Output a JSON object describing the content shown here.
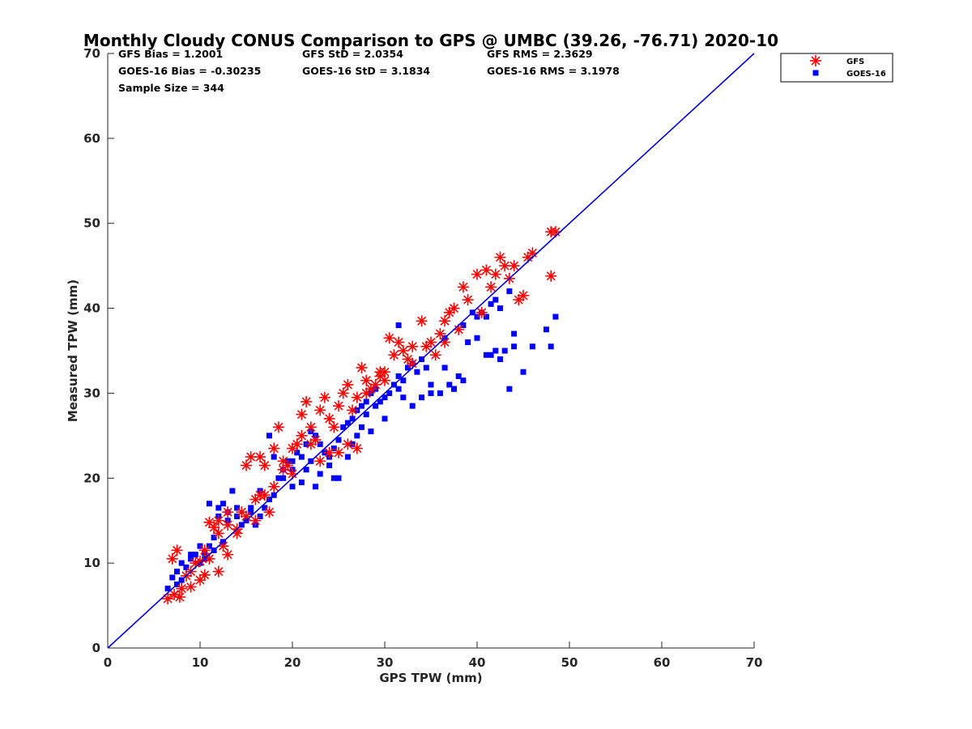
{
  "chart_data": {
    "type": "scatter",
    "title": "Monthly Cloudy CONUS Comparison to GPS @ UMBC (39.26, -76.71) 2020-10",
    "xlabel": "GPS TPW (mm)",
    "ylabel": "Measured TPW (mm)",
    "xlim": [
      0,
      70
    ],
    "ylim": [
      0,
      70
    ],
    "xticks": [
      "0",
      "10",
      "20",
      "30",
      "40",
      "50",
      "60",
      "70"
    ],
    "yticks": [
      "0",
      "10",
      "20",
      "30",
      "40",
      "50",
      "60",
      "70"
    ],
    "grid": false,
    "legend_position": "top-right outside",
    "stats": [
      "GFS Bias = 1.2001",
      "GFS StD = 2.0354",
      "GFS RMS = 2.3629",
      "GOES-16 Bias = -0.30235",
      "GOES-16 StD = 3.1834",
      "GOES-16 RMS = 3.1978",
      "Sample Size = 344"
    ],
    "reference_line": {
      "name": "1:1 line",
      "color": "#0000dd",
      "x": [
        0,
        70
      ],
      "y": [
        0,
        70
      ]
    },
    "series": [
      {
        "name": "GFS",
        "marker": "asterisk",
        "color": "#ff0000",
        "points": [
          [
            6.5,
            5.8
          ],
          [
            7.2,
            6.3
          ],
          [
            7.8,
            6.0
          ],
          [
            7,
            10.5
          ],
          [
            7.5,
            11.5
          ],
          [
            8.5,
            8.5
          ],
          [
            9,
            7.2
          ],
          [
            9.5,
            10.0
          ],
          [
            10,
            8.0
          ],
          [
            10.5,
            8.6
          ],
          [
            10,
            10.2
          ],
          [
            11,
            14.8
          ],
          [
            11.5,
            14.2
          ],
          [
            12,
            9.0
          ],
          [
            12,
            15.0
          ],
          [
            12.5,
            12.0
          ],
          [
            13,
            11.0
          ],
          [
            13,
            14.5
          ],
          [
            14,
            14.0
          ],
          [
            14.5,
            16.0
          ],
          [
            15,
            21.5
          ],
          [
            15.5,
            22.5
          ],
          [
            16,
            17.5
          ],
          [
            16.5,
            22.5
          ],
          [
            16,
            15.0
          ],
          [
            17,
            21.5
          ],
          [
            17,
            18.0
          ],
          [
            17.5,
            16.0
          ],
          [
            18,
            23.5
          ],
          [
            18.5,
            26.0
          ],
          [
            19,
            22.0
          ],
          [
            19.5,
            21.5
          ],
          [
            20,
            23.5
          ],
          [
            20.5,
            24.0
          ],
          [
            21,
            27.5
          ],
          [
            21.5,
            29.0
          ],
          [
            22,
            26.0
          ],
          [
            22.5,
            24.5
          ],
          [
            23,
            28.0
          ],
          [
            23.5,
            29.5
          ],
          [
            24,
            27.0
          ],
          [
            24.5,
            26.0
          ],
          [
            25,
            28.5
          ],
          [
            25.5,
            30.0
          ],
          [
            26,
            31.0
          ],
          [
            26.5,
            28.0
          ],
          [
            27,
            29.5
          ],
          [
            27.5,
            33.0
          ],
          [
            28,
            31.5
          ],
          [
            28.5,
            30.5
          ],
          [
            29,
            31.0
          ],
          [
            29.5,
            32.0
          ],
          [
            30,
            32.5
          ],
          [
            30.5,
            36.5
          ],
          [
            31,
            34.5
          ],
          [
            31.5,
            36.0
          ],
          [
            32,
            35.0
          ],
          [
            32.5,
            34.0
          ],
          [
            33,
            35.5
          ],
          [
            34,
            38.5
          ],
          [
            34.5,
            35.5
          ],
          [
            35,
            36.0
          ],
          [
            35.5,
            34.5
          ],
          [
            36,
            37.0
          ],
          [
            36.5,
            38.5
          ],
          [
            37,
            39.5
          ],
          [
            37.5,
            40.0
          ],
          [
            38,
            37.5
          ],
          [
            38.5,
            42.5
          ],
          [
            39,
            41.0
          ],
          [
            40,
            44.0
          ],
          [
            41,
            44.5
          ],
          [
            41.5,
            42.5
          ],
          [
            42,
            44.0
          ],
          [
            42.5,
            46.0
          ],
          [
            43,
            45.0
          ],
          [
            43.5,
            43.5
          ],
          [
            44,
            45.0
          ],
          [
            44.5,
            41.0
          ],
          [
            45,
            41.5
          ],
          [
            45.5,
            46.0
          ],
          [
            46,
            46.5
          ],
          [
            48,
            49.0
          ],
          [
            48.5,
            49.0
          ],
          [
            48,
            43.8
          ],
          [
            27,
            23.5
          ],
          [
            26,
            24.0
          ],
          [
            24,
            23.0
          ],
          [
            19,
            21.0
          ],
          [
            13,
            16.0
          ],
          [
            29.5,
            32.5
          ],
          [
            30,
            31.5
          ],
          [
            28,
            30.0
          ],
          [
            25,
            23.0
          ],
          [
            23,
            22.0
          ],
          [
            22,
            24.0
          ],
          [
            20,
            20.5
          ],
          [
            18,
            19.0
          ],
          [
            12,
            13.5
          ],
          [
            11,
            10.5
          ],
          [
            15,
            15.5
          ],
          [
            14,
            13.5
          ],
          [
            9,
            9.0
          ],
          [
            8,
            7.0
          ],
          [
            10.5,
            11.5
          ],
          [
            16.5,
            18.0
          ],
          [
            21,
            25.0
          ],
          [
            33,
            33.5
          ],
          [
            36.5,
            36.0
          ],
          [
            40.5,
            39.5
          ]
        ]
      },
      {
        "name": "GOES-16",
        "marker": "square",
        "color": "#0000ff",
        "points": [
          [
            6.5,
            7.0
          ],
          [
            7,
            8.3
          ],
          [
            7.5,
            7.5
          ],
          [
            8,
            8.0
          ],
          [
            8.5,
            9.5
          ],
          [
            9,
            10.5
          ],
          [
            9.5,
            11.0
          ],
          [
            10,
            10.0
          ],
          [
            10.5,
            11.2
          ],
          [
            11,
            12.0
          ],
          [
            11.5,
            13.0
          ],
          [
            12,
            16.5
          ],
          [
            12.5,
            17.0
          ],
          [
            13,
            16.0
          ],
          [
            13.5,
            18.5
          ],
          [
            14,
            15.5
          ],
          [
            14.5,
            14.5
          ],
          [
            15,
            15.0
          ],
          [
            15.5,
            16.0
          ],
          [
            16,
            14.5
          ],
          [
            16.5,
            15.5
          ],
          [
            17,
            16.5
          ],
          [
            17.5,
            17.5
          ],
          [
            18,
            18.0
          ],
          [
            18.5,
            20.0
          ],
          [
            19,
            21.0
          ],
          [
            19.5,
            22.0
          ],
          [
            20,
            22.0
          ],
          [
            20.5,
            23.0
          ],
          [
            21,
            22.5
          ],
          [
            21.5,
            24.0
          ],
          [
            22,
            25.5
          ],
          [
            22.5,
            25.0
          ],
          [
            23,
            24.0
          ],
          [
            23.5,
            23.0
          ],
          [
            24,
            22.5
          ],
          [
            24.5,
            23.5
          ],
          [
            25,
            24.5
          ],
          [
            25.5,
            26.0
          ],
          [
            26,
            26.5
          ],
          [
            26.5,
            27.0
          ],
          [
            27,
            28.0
          ],
          [
            27.5,
            28.5
          ],
          [
            28,
            29.0
          ],
          [
            28.5,
            30.0
          ],
          [
            29,
            30.5
          ],
          [
            29.5,
            29.0
          ],
          [
            30,
            29.5
          ],
          [
            30.5,
            30.0
          ],
          [
            31,
            31.0
          ],
          [
            31.5,
            32.0
          ],
          [
            32,
            31.5
          ],
          [
            32.5,
            33.0
          ],
          [
            33,
            33.5
          ],
          [
            33.5,
            32.5
          ],
          [
            34,
            34.0
          ],
          [
            34.5,
            33.0
          ],
          [
            35,
            31.0
          ],
          [
            36,
            30.0
          ],
          [
            37,
            31.0
          ],
          [
            37.5,
            30.5
          ],
          [
            38,
            32.0
          ],
          [
            38.5,
            31.5
          ],
          [
            39,
            36.0
          ],
          [
            40,
            36.5
          ],
          [
            41,
            34.5
          ],
          [
            41.5,
            34.5
          ],
          [
            42,
            35.0
          ],
          [
            42.5,
            34.0
          ],
          [
            43,
            35.0
          ],
          [
            43.5,
            30.5
          ],
          [
            44,
            35.5
          ],
          [
            45,
            32.5
          ],
          [
            46,
            35.5
          ],
          [
            47.5,
            37.5
          ],
          [
            48,
            35.5
          ],
          [
            48.5,
            39.0
          ],
          [
            31.5,
            38.0
          ],
          [
            40.5,
            39.5
          ],
          [
            41.5,
            40.5
          ],
          [
            42.5,
            40.0
          ],
          [
            43.5,
            42.0
          ],
          [
            42,
            41.0
          ],
          [
            38.5,
            38.0
          ],
          [
            36.5,
            36.5
          ],
          [
            28.5,
            25.5
          ],
          [
            27,
            25.0
          ],
          [
            25,
            20.0
          ],
          [
            24,
            21.5
          ],
          [
            22.5,
            19.0
          ],
          [
            21,
            19.5
          ],
          [
            20,
            19.0
          ],
          [
            19,
            20.0
          ],
          [
            18,
            22.5
          ],
          [
            17.5,
            25.0
          ],
          [
            16.5,
            18.5
          ],
          [
            15.5,
            16.5
          ],
          [
            14,
            16.5
          ],
          [
            13,
            15.0
          ],
          [
            12,
            15.5
          ],
          [
            11,
            17.0
          ],
          [
            10,
            12.0
          ],
          [
            9,
            11.0
          ],
          [
            8,
            10.0
          ],
          [
            7.5,
            9.0
          ],
          [
            10.5,
            10.5
          ],
          [
            11.5,
            11.5
          ],
          [
            12.5,
            12.5
          ],
          [
            20,
            21.0
          ],
          [
            21.5,
            21.0
          ],
          [
            22,
            22.0
          ],
          [
            23,
            20.5
          ],
          [
            24.5,
            20.0
          ],
          [
            26,
            22.5
          ],
          [
            26.5,
            24.0
          ],
          [
            27.5,
            26.0
          ],
          [
            28,
            27.5
          ],
          [
            29,
            28.5
          ],
          [
            30,
            27.0
          ],
          [
            31.5,
            30.5
          ],
          [
            32,
            29.5
          ],
          [
            33,
            28.5
          ],
          [
            34,
            29.5
          ],
          [
            35,
            30.0
          ],
          [
            36.5,
            33.0
          ],
          [
            37.5,
            30.5
          ],
          [
            39.5,
            39.5
          ],
          [
            41,
            39.0
          ],
          [
            44,
            37.0
          ],
          [
            40,
            39.0
          ]
        ]
      }
    ]
  }
}
